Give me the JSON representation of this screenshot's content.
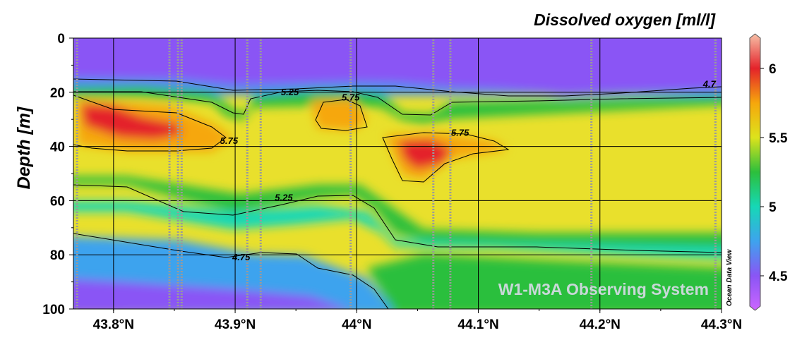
{
  "chart_data": {
    "type": "heatmap",
    "title": "Dissolved oxygen [ml/l]",
    "ylabel": "Depth [m]",
    "xlabel": "",
    "x_tick_labels": [
      "43.8°N",
      "43.9°N",
      "44°N",
      "44.1°N",
      "44.2°N",
      "44.3°N"
    ],
    "x_ticks": [
      43.8,
      43.9,
      44.0,
      44.1,
      44.2,
      44.3
    ],
    "xlim": [
      43.767,
      44.3
    ],
    "y_tick_labels": [
      "0",
      "20",
      "40",
      "60",
      "80",
      "100"
    ],
    "y_ticks": [
      0,
      20,
      40,
      60,
      80,
      100
    ],
    "ylim": [
      0,
      100
    ],
    "y_inverted": true,
    "colorbar": {
      "range": [
        4.25,
        6.25
      ],
      "tick_labels": [
        "4.5",
        "5",
        "5.5",
        "6"
      ],
      "ticks": [
        4.5,
        5.0,
        5.5,
        6.0
      ],
      "stops": [
        {
          "value": 4.25,
          "color": "#cc66ff"
        },
        {
          "value": 4.5,
          "color": "#8a55f5"
        },
        {
          "value": 4.75,
          "color": "#3ea3ee"
        },
        {
          "value": 5.0,
          "color": "#16d8b6"
        },
        {
          "value": 5.25,
          "color": "#2cbf3c"
        },
        {
          "value": 5.5,
          "color": "#dde31c"
        },
        {
          "value": 5.75,
          "color": "#f6a70c"
        },
        {
          "value": 6.0,
          "color": "#e4232a"
        },
        {
          "value": 6.25,
          "color": "#f7c0a7"
        }
      ]
    },
    "contour_labels": [
      {
        "text": "4.7",
        "lat": 44.29,
        "depth": 17
      },
      {
        "text": "5.25",
        "lat": 43.945,
        "depth": 20
      },
      {
        "text": "5.75",
        "lat": 43.995,
        "depth": 22
      },
      {
        "text": "5.75",
        "lat": 43.895,
        "depth": 38
      },
      {
        "text": "5.75",
        "lat": 44.085,
        "depth": 35
      },
      {
        "text": "5.25",
        "lat": 43.94,
        "depth": 59
      },
      {
        "text": "4.75",
        "lat": 43.905,
        "depth": 81
      }
    ],
    "station_lats": [
      43.77,
      43.846,
      43.853,
      43.856,
      43.91,
      43.921,
      43.995,
      44.063,
      44.077,
      44.193,
      44.295
    ],
    "grid": true
  },
  "watermark": "W1-M3A Observing System",
  "software_label": "Ocean Data View",
  "colors": {
    "gridline": "#000000",
    "station_line": "#9a9a9a"
  }
}
